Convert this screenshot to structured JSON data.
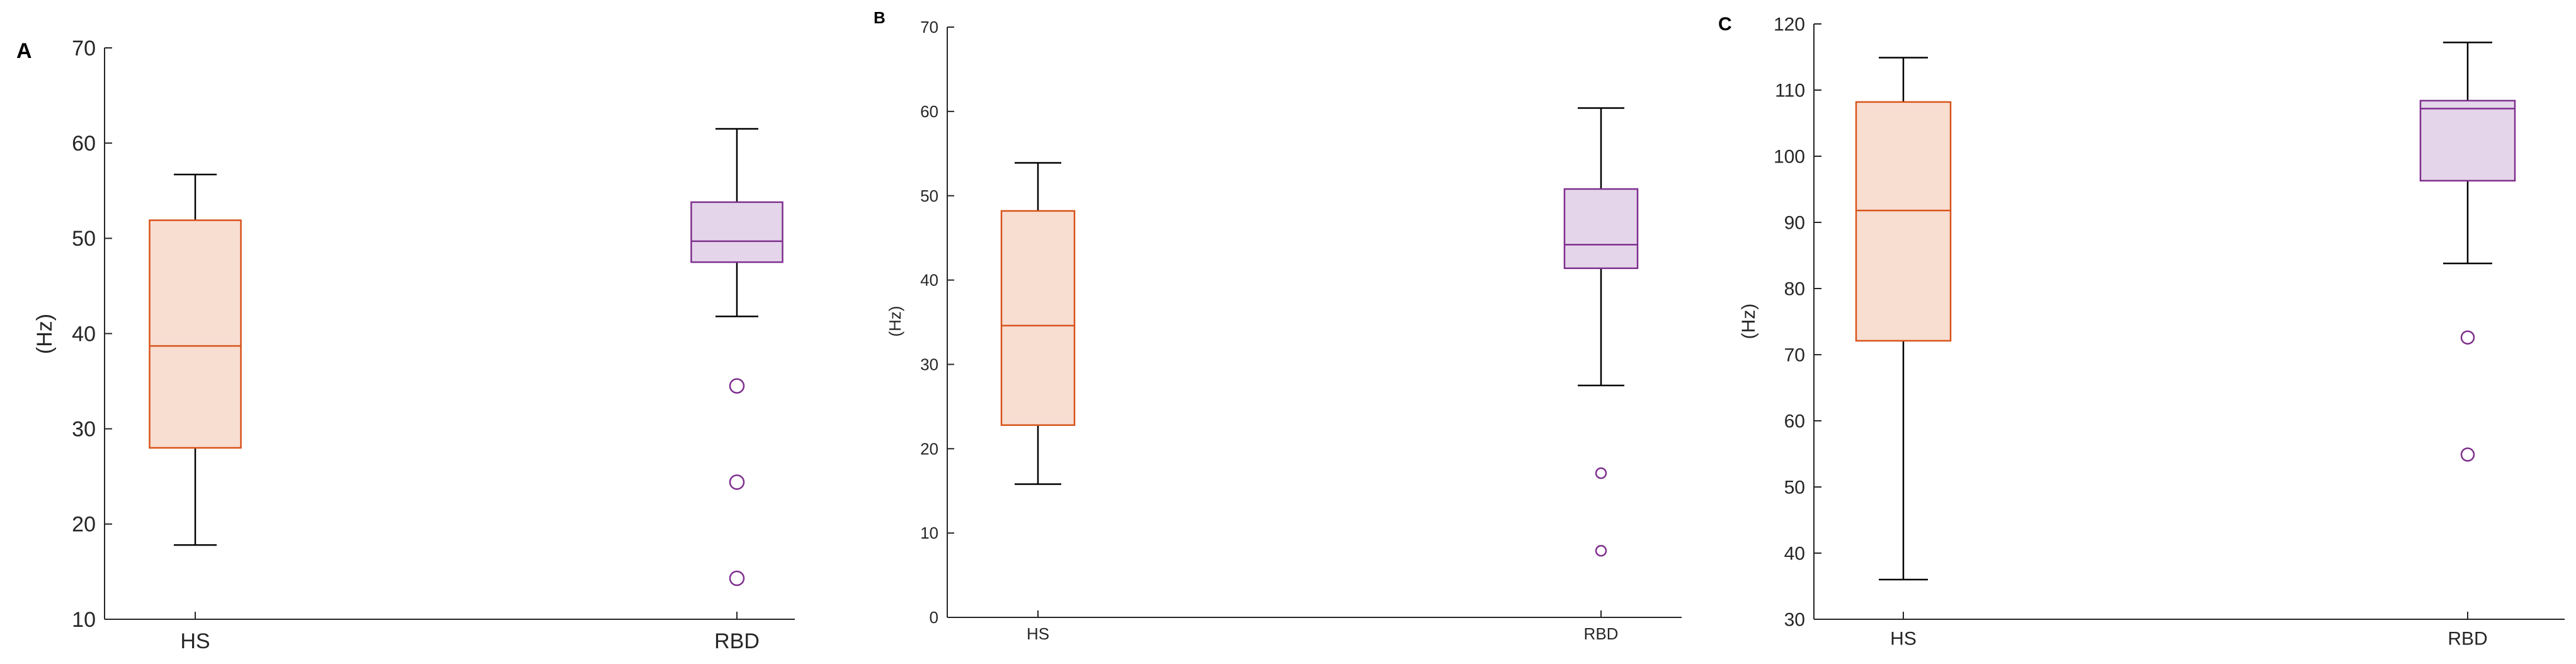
{
  "colors": {
    "hs_edge": "#D95319",
    "hs_fill": "#F8DDD1",
    "rbd_edge": "#7E2F8E",
    "rbd_fill": "#E5D5EA",
    "whisker": "#000000",
    "axis": "#262626"
  },
  "chart_data": [
    {
      "type": "box",
      "panel_label": "A",
      "ylabel": "(Hz)",
      "ylim": [
        10,
        70
      ],
      "yticks": [
        10,
        20,
        30,
        40,
        50,
        60,
        70
      ],
      "categories": [
        "HS",
        "RBD"
      ],
      "boxes": [
        {
          "category": "HS",
          "whisker_low": 17.8,
          "q1": 28.0,
          "median": 38.7,
          "q3": 51.9,
          "whisker_high": 56.7,
          "outliers": []
        },
        {
          "category": "RBD",
          "whisker_low": 41.8,
          "q1": 47.5,
          "median": 49.7,
          "q3": 53.8,
          "whisker_high": 61.5,
          "outliers": [
            34.5,
            24.4,
            14.3
          ]
        }
      ],
      "grid": false
    },
    {
      "type": "box",
      "panel_label": "B",
      "ylabel": "(Hz)",
      "ylim": [
        0,
        70
      ],
      "yticks": [
        0,
        10,
        20,
        30,
        40,
        50,
        60,
        70
      ],
      "categories": [
        "HS",
        "RBD"
      ],
      "boxes": [
        {
          "category": "HS",
          "whisker_low": 15.8,
          "q1": 22.8,
          "median": 34.6,
          "q3": 48.2,
          "whisker_high": 53.9,
          "outliers": []
        },
        {
          "category": "RBD",
          "whisker_low": 27.5,
          "q1": 41.4,
          "median": 44.2,
          "q3": 50.8,
          "whisker_high": 60.4,
          "outliers": [
            17.1,
            7.9
          ]
        }
      ],
      "grid": false
    },
    {
      "type": "box",
      "panel_label": "C",
      "ylabel": "(Hz)",
      "ylim": [
        30,
        120
      ],
      "yticks": [
        30,
        40,
        50,
        60,
        70,
        80,
        90,
        100,
        110,
        120
      ],
      "categories": [
        "HS",
        "RBD"
      ],
      "boxes": [
        {
          "category": "HS",
          "whisker_low": 36.0,
          "q1": 72.1,
          "median": 91.8,
          "q3": 108.2,
          "whisker_high": 114.9,
          "outliers": []
        },
        {
          "category": "RBD",
          "whisker_low": 83.8,
          "q1": 96.3,
          "median": 107.2,
          "q3": 108.4,
          "whisker_high": 117.2,
          "outliers": [
            72.6,
            54.9
          ]
        }
      ],
      "grid": false
    }
  ]
}
